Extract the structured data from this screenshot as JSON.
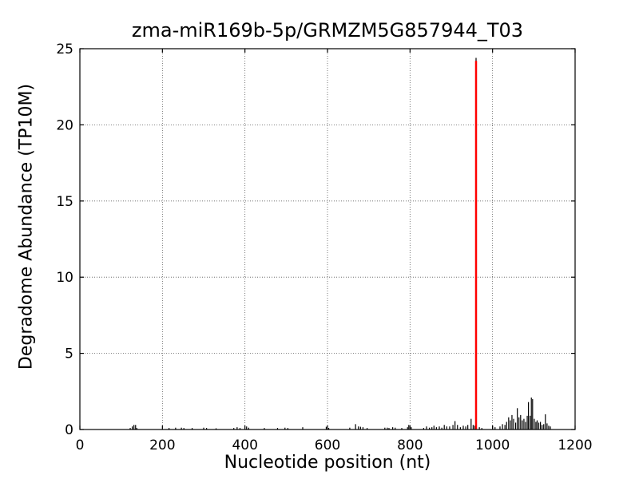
{
  "figure": {
    "title": "zma-miR169b-5p/GRMZM5G857944_T03",
    "xlabel": "Nucleotide position (nt)",
    "ylabel": "Degradome Abundance (TP10M)"
  },
  "chart_data": {
    "type": "bar",
    "subtype": "degradome-spike-plot",
    "title": "zma-miR169b-5p/GRMZM5G857944_T03",
    "xlabel": "Nucleotide position (nt)",
    "ylabel": "Degradome Abundance (TP10M)",
    "xlim": [
      0,
      1200
    ],
    "ylim": [
      0,
      25
    ],
    "xticks": [
      0,
      200,
      400,
      600,
      800,
      1000,
      1200
    ],
    "yticks": [
      0,
      5,
      10,
      15,
      20,
      25
    ],
    "grid": "dotted",
    "legend": "none",
    "colors": {
      "spikes": "#000000",
      "cleavage_marker": "#ff0000",
      "background": "#ffffff",
      "frame": "#000000"
    },
    "cleavage_site": {
      "position": 960,
      "value": 24.2
    },
    "peak": {
      "position": 960,
      "value": 24.4
    },
    "points": [
      [
        122,
        0.1
      ],
      [
        127,
        0.2
      ],
      [
        131,
        0.3
      ],
      [
        135,
        0.3
      ],
      [
        138,
        0.1
      ],
      [
        216,
        0.1
      ],
      [
        232,
        0.12
      ],
      [
        246,
        0.12
      ],
      [
        252,
        0.1
      ],
      [
        272,
        0.1
      ],
      [
        300,
        0.12
      ],
      [
        307,
        0.1
      ],
      [
        330,
        0.08
      ],
      [
        373,
        0.1
      ],
      [
        381,
        0.15
      ],
      [
        388,
        0.1
      ],
      [
        404,
        0.2
      ],
      [
        409,
        0.12
      ],
      [
        447,
        0.1
      ],
      [
        479,
        0.1
      ],
      [
        497,
        0.12
      ],
      [
        504,
        0.1
      ],
      [
        540,
        0.15
      ],
      [
        597,
        0.18
      ],
      [
        603,
        0.1
      ],
      [
        654,
        0.12
      ],
      [
        668,
        0.35
      ],
      [
        675,
        0.2
      ],
      [
        680,
        0.18
      ],
      [
        686,
        0.15
      ],
      [
        696,
        0.1
      ],
      [
        739,
        0.12
      ],
      [
        745,
        0.12
      ],
      [
        749,
        0.1
      ],
      [
        758,
        0.15
      ],
      [
        764,
        0.12
      ],
      [
        780,
        0.1
      ],
      [
        794,
        0.15
      ],
      [
        797,
        0.3
      ],
      [
        803,
        0.15
      ],
      [
        833,
        0.1
      ],
      [
        840,
        0.2
      ],
      [
        847,
        0.12
      ],
      [
        853,
        0.15
      ],
      [
        858,
        0.25
      ],
      [
        864,
        0.15
      ],
      [
        871,
        0.2
      ],
      [
        877,
        0.12
      ],
      [
        883,
        0.3
      ],
      [
        889,
        0.2
      ],
      [
        896,
        0.2
      ],
      [
        904,
        0.3
      ],
      [
        909,
        0.55
      ],
      [
        915,
        0.3
      ],
      [
        922,
        0.15
      ],
      [
        929,
        0.25
      ],
      [
        935,
        0.2
      ],
      [
        940,
        0.3
      ],
      [
        948,
        0.7
      ],
      [
        953,
        0.3
      ],
      [
        957,
        0.25
      ],
      [
        960,
        24.4
      ],
      [
        968,
        0.15
      ],
      [
        974,
        0.1
      ],
      [
        1000,
        0.25
      ],
      [
        1006,
        0.15
      ],
      [
        1018,
        0.2
      ],
      [
        1024,
        0.35
      ],
      [
        1030,
        0.3
      ],
      [
        1034,
        0.5
      ],
      [
        1039,
        0.8
      ],
      [
        1043,
        0.6
      ],
      [
        1047,
        0.95
      ],
      [
        1051,
        0.7
      ],
      [
        1056,
        0.45
      ],
      [
        1060,
        1.4
      ],
      [
        1064,
        0.8
      ],
      [
        1068,
        0.95
      ],
      [
        1072,
        0.6
      ],
      [
        1076,
        0.7
      ],
      [
        1080,
        0.5
      ],
      [
        1084,
        0.9
      ],
      [
        1087,
        1.8
      ],
      [
        1091,
        0.9
      ],
      [
        1094,
        2.1
      ],
      [
        1097,
        2.0
      ],
      [
        1101,
        0.7
      ],
      [
        1105,
        0.5
      ],
      [
        1108,
        0.6
      ],
      [
        1112,
        0.45
      ],
      [
        1116,
        0.5
      ],
      [
        1120,
        0.3
      ],
      [
        1124,
        0.35
      ],
      [
        1128,
        1.0
      ],
      [
        1132,
        0.4
      ],
      [
        1136,
        0.25
      ],
      [
        1140,
        0.2
      ]
    ]
  }
}
